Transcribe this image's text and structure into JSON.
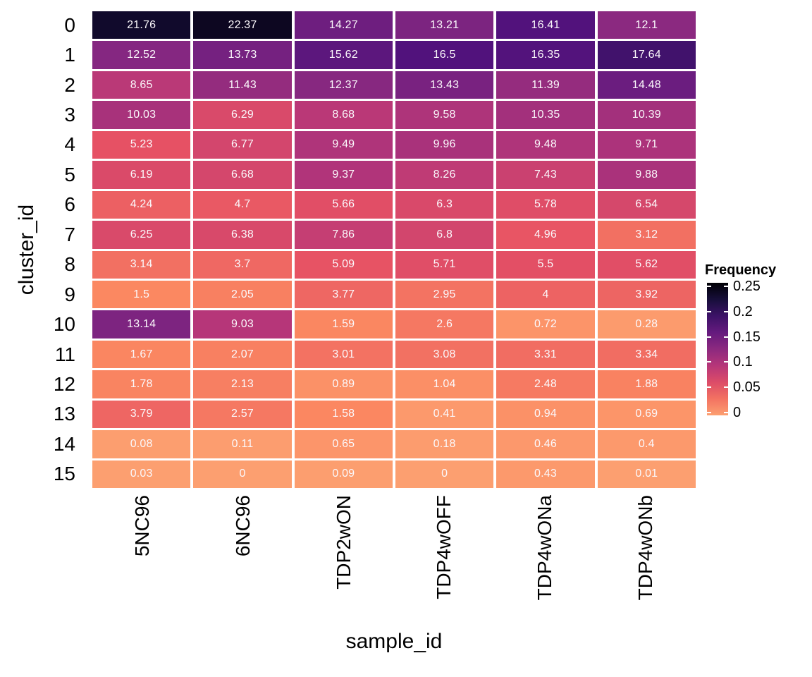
{
  "chart_data": {
    "type": "heatmap",
    "title": "",
    "xlabel": "sample_id",
    "ylabel": "cluster_id",
    "columns": [
      "5NC96",
      "6NC96",
      "TDP2wON",
      "TDP4wOFF",
      "TDP4wONa",
      "TDP4wONb"
    ],
    "rows": [
      "0",
      "1",
      "2",
      "3",
      "4",
      "5",
      "6",
      "7",
      "8",
      "9",
      "10",
      "11",
      "12",
      "13",
      "14",
      "15"
    ],
    "values_unit": "percent",
    "values": [
      [
        21.76,
        22.37,
        14.27,
        13.21,
        16.41,
        12.1
      ],
      [
        12.52,
        13.73,
        15.62,
        16.5,
        16.35,
        17.64
      ],
      [
        8.65,
        11.43,
        12.37,
        13.43,
        11.39,
        14.48
      ],
      [
        10.03,
        6.29,
        8.68,
        9.58,
        10.35,
        10.39
      ],
      [
        5.23,
        6.77,
        9.49,
        9.96,
        9.48,
        9.71
      ],
      [
        6.19,
        6.68,
        9.37,
        8.26,
        7.43,
        9.88
      ],
      [
        4.24,
        4.7,
        5.66,
        6.3,
        5.78,
        6.54
      ],
      [
        6.25,
        6.38,
        7.86,
        6.8,
        4.96,
        3.12
      ],
      [
        3.14,
        3.7,
        5.09,
        5.71,
        5.5,
        5.62
      ],
      [
        1.5,
        2.05,
        3.77,
        2.95,
        4,
        3.92
      ],
      [
        13.14,
        9.03,
        1.59,
        2.6,
        0.72,
        0.28
      ],
      [
        1.67,
        2.07,
        3.01,
        3.08,
        3.31,
        3.34
      ],
      [
        1.78,
        2.13,
        0.89,
        1.04,
        2.48,
        1.88
      ],
      [
        3.79,
        2.57,
        1.58,
        0.41,
        0.94,
        0.69
      ],
      [
        0.08,
        0.11,
        0.65,
        0.18,
        0.46,
        0.4
      ],
      [
        0.03,
        0,
        0.09,
        0,
        0.43,
        0.01
      ]
    ],
    "legend": {
      "title": "Frequency",
      "ticks": [
        "0.25",
        "0.2",
        "0.15",
        "0.1",
        "0.05",
        "0"
      ],
      "range": [
        0,
        0.25
      ],
      "position": "right"
    },
    "colormap": {
      "name": "magma-reversed",
      "anchors": [
        "#000004",
        "#1d1147",
        "#51127c",
        "#822681",
        "#b63679",
        "#e65164",
        "#fb8861",
        "#fec287",
        "#fcfdbf"
      ],
      "cell_text_color": "#ffffff",
      "axis_text_color": "#000000",
      "background": "#ffffff"
    }
  }
}
